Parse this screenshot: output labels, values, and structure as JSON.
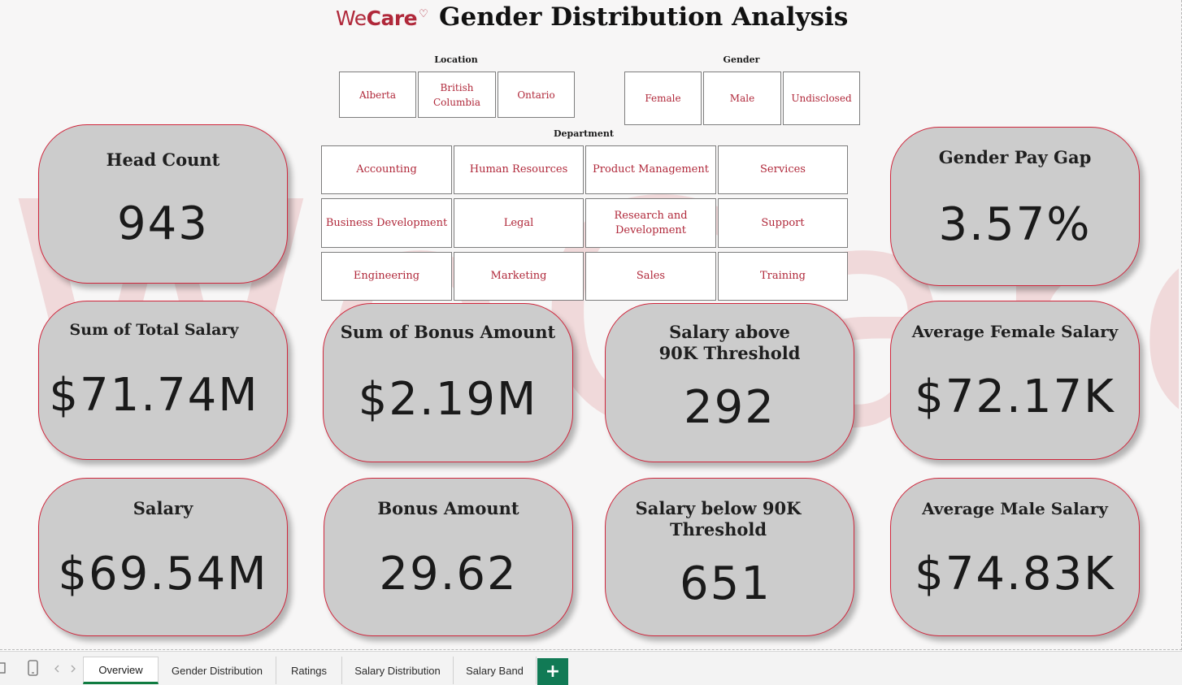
{
  "header": {
    "logo_we": "We",
    "logo_care": "Care",
    "logo_heart": "♡",
    "title": "Gender Distribution Analysis"
  },
  "watermark": "WeCare",
  "slicers": {
    "location": {
      "label": "Location",
      "items": [
        "Alberta",
        "British Columbia",
        "Ontario"
      ]
    },
    "gender": {
      "label": "Gender",
      "items": [
        "Female",
        "Male",
        "Undisclosed"
      ]
    },
    "department": {
      "label": "Department",
      "items": [
        "Accounting",
        "Human Resources",
        "Product Management",
        "Services",
        "Business Development",
        "Legal",
        "Research and Development",
        "Support",
        "Engineering",
        "Marketing",
        "Sales",
        "Training"
      ]
    }
  },
  "kpis": {
    "head_count": {
      "title": "Head Count",
      "value": "943"
    },
    "gender_pay_gap": {
      "title": "Gender Pay Gap",
      "value": "3.57%"
    },
    "sum_total_salary": {
      "title": "Sum of Total Salary",
      "value": "$71.74M"
    },
    "sum_bonus": {
      "title": "Sum of Bonus Amount",
      "value": "$2.19M"
    },
    "above_90k": {
      "title": "Salary above 90K Threshold",
      "value": "292"
    },
    "avg_female": {
      "title": "Average Female Salary",
      "value": "$72.17K"
    },
    "salary": {
      "title": "Salary",
      "value": "$69.54M"
    },
    "bonus_amount": {
      "title": "Bonus Amount",
      "value": "29.62"
    },
    "below_90k": {
      "title": "Salary below 90K Threshold",
      "value": "651"
    },
    "avg_male": {
      "title": "Average Male Salary",
      "value": "$74.83K"
    }
  },
  "tabs": [
    {
      "label": "Overview",
      "active": true
    },
    {
      "label": "Gender Distribution"
    },
    {
      "label": "Ratings"
    },
    {
      "label": "Salary Distribution"
    },
    {
      "label": "Salary Band"
    }
  ],
  "add_sheet": "+",
  "colors": {
    "accent": "#b0283a",
    "card_border": "#d0263c",
    "card_fill": "#cccccc",
    "excel_green": "#117a55"
  }
}
